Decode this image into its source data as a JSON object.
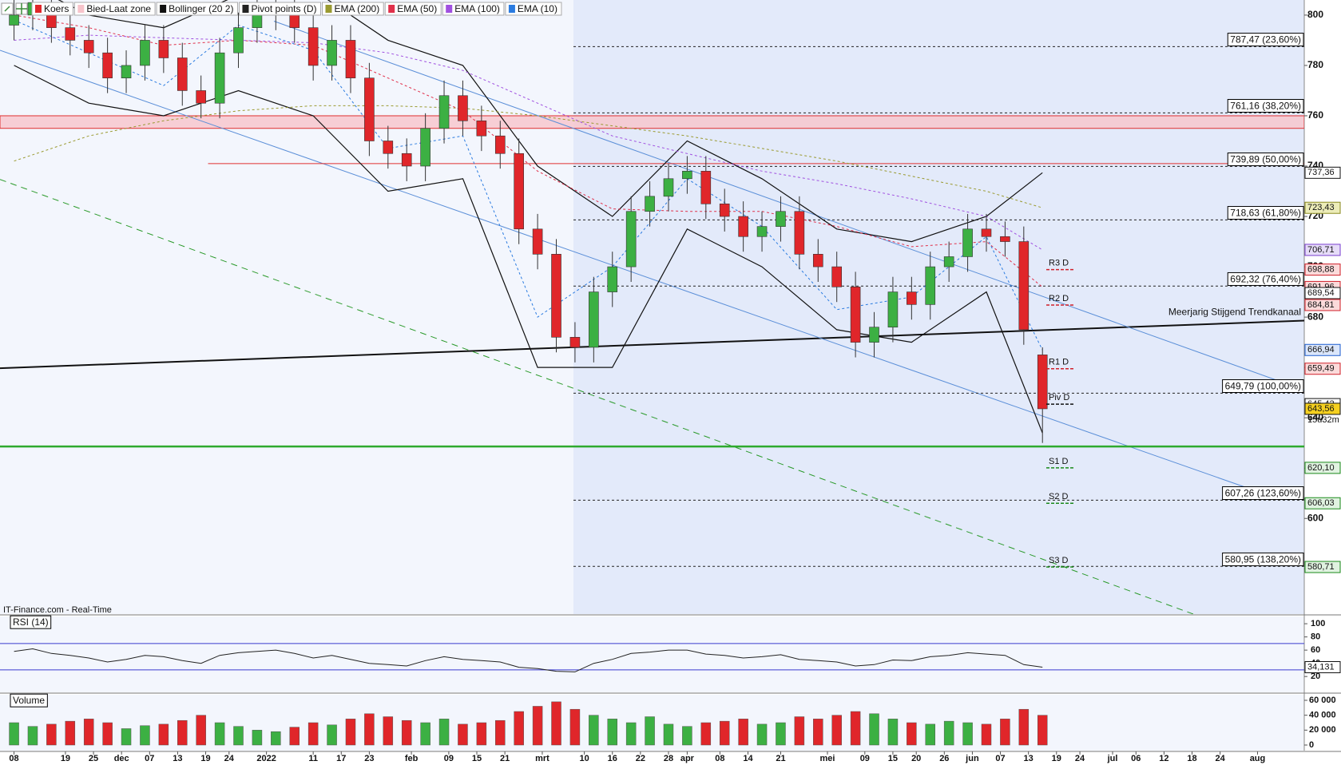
{
  "watermark": "IT-Finance.com - Real-Time",
  "chart_data": [
    {
      "type": "candlestick",
      "name": "Koers",
      "up_color": "#3cb043",
      "down_color": "#e0262a",
      "xlim": [
        -3,
        276
      ],
      "ylim": [
        562,
        806
      ],
      "yticks": [
        580,
        600,
        620,
        640,
        660,
        680,
        700,
        720,
        740,
        760,
        780,
        800
      ],
      "x": [
        0,
        4,
        8,
        12,
        16,
        20,
        24,
        28,
        32,
        36,
        40,
        44,
        48,
        52,
        56,
        60,
        64,
        68,
        72,
        76,
        80,
        84,
        88,
        92,
        96,
        100,
        104,
        108,
        112,
        116,
        120,
        124,
        128,
        132,
        136,
        140,
        144,
        148,
        152,
        156,
        160,
        164,
        168,
        172,
        176,
        180,
        184,
        188,
        192,
        196,
        200,
        204,
        208,
        212,
        216,
        220
      ],
      "open": [
        796,
        800,
        805,
        795,
        790,
        785,
        775,
        780,
        790,
        783,
        770,
        765,
        785,
        795,
        800,
        802,
        795,
        780,
        790,
        775,
        750,
        745,
        740,
        755,
        768,
        758,
        752,
        745,
        715,
        705,
        672,
        668,
        690,
        700,
        722,
        728,
        735,
        738,
        725,
        720,
        712,
        716,
        722,
        705,
        700,
        692,
        670,
        676,
        690,
        685,
        700,
        704,
        715,
        712,
        710,
        665
      ],
      "high": [
        806,
        811,
        811,
        801,
        796,
        791,
        786,
        796,
        796,
        789,
        776,
        791,
        801,
        806,
        808,
        808,
        801,
        796,
        796,
        781,
        756,
        751,
        761,
        774,
        774,
        764,
        758,
        751,
        721,
        711,
        678,
        696,
        706,
        728,
        734,
        741,
        744,
        744,
        731,
        726,
        722,
        728,
        728,
        711,
        706,
        698,
        682,
        696,
        696,
        706,
        710,
        721,
        721,
        718,
        716,
        668
      ],
      "low": [
        790,
        794,
        789,
        784,
        779,
        769,
        769,
        774,
        777,
        764,
        759,
        759,
        779,
        789,
        794,
        789,
        774,
        774,
        769,
        744,
        739,
        734,
        734,
        749,
        752,
        746,
        739,
        709,
        699,
        666,
        662,
        662,
        684,
        694,
        716,
        722,
        729,
        719,
        714,
        706,
        706,
        710,
        699,
        694,
        686,
        664,
        664,
        670,
        679,
        679,
        694,
        698,
        706,
        704,
        669,
        630
      ],
      "close": [
        800,
        805,
        795,
        790,
        785,
        775,
        780,
        790,
        783,
        770,
        765,
        785,
        795,
        800,
        802,
        795,
        780,
        790,
        775,
        750,
        745,
        740,
        755,
        768,
        758,
        752,
        745,
        715,
        705,
        672,
        668,
        690,
        700,
        722,
        728,
        735,
        738,
        725,
        720,
        712,
        716,
        722,
        705,
        700,
        692,
        670,
        676,
        690,
        685,
        700,
        704,
        715,
        712,
        710,
        675,
        643.56
      ],
      "zone": {
        "name": "Bied-Laat zone",
        "values": [
          755,
          760
        ],
        "color": "#f7c4cb"
      },
      "pivot_name": "Pivot points (D)",
      "overlay_x": [
        0,
        16,
        32,
        48,
        64,
        80,
        96,
        112,
        128,
        144,
        160,
        176,
        192,
        208,
        220
      ],
      "overlays": [
        {
          "name": "Bollinger (20 2)",
          "color": "#111111",
          "upper": [
            815,
            800,
            795,
            808,
            810,
            790,
            780,
            740,
            720,
            750,
            735,
            715,
            710,
            720,
            737.36
          ],
          "lower": [
            780,
            765,
            760,
            770,
            760,
            730,
            735,
            660,
            660,
            715,
            700,
            675,
            670,
            690,
            634
          ]
        },
        {
          "name": "EMA (200)",
          "color": "#9a9a30",
          "values": [
            742,
            752,
            758,
            762,
            764,
            764,
            763,
            760,
            756,
            752,
            747,
            742,
            736,
            730,
            723.43
          ]
        },
        {
          "name": "EMA (50)",
          "color": "#e0304a",
          "values": [
            800,
            795,
            788,
            790,
            788,
            775,
            762,
            738,
            723,
            722,
            722,
            716,
            708,
            710,
            691.96
          ]
        },
        {
          "name": "EMA (100)",
          "color": "#a050e0",
          "values": [
            790,
            792,
            791,
            790,
            789,
            785,
            778,
            765,
            752,
            745,
            738,
            733,
            727,
            720,
            706.71
          ]
        },
        {
          "name": "EMA (10)",
          "color": "#2a7be0",
          "values": [
            798,
            785,
            772,
            796,
            786,
            747,
            752,
            680,
            700,
            735,
            716,
            683,
            688,
            712,
            666.94
          ]
        }
      ],
      "levels": [
        {
          "value": 787.47,
          "label": "787,47 (23,60%)"
        },
        {
          "value": 761.16,
          "label": "761,16 (38,20%)"
        },
        {
          "value": 739.89,
          "label": "739,89 (50,00%)"
        },
        {
          "value": 718.63,
          "label": "718,63 (61,80%)"
        },
        {
          "value": 692.32,
          "label": "692,32 (76,40%)"
        },
        {
          "value": 649.79,
          "label": "649,79 (100,00%)"
        },
        {
          "value": 607.26,
          "label": "607,26 (123,60%)"
        },
        {
          "value": 580.95,
          "label": "580,95 (138,20%)"
        }
      ],
      "pivots": [
        {
          "name": "R3 D",
          "value": 698.88,
          "color": "#d0202a"
        },
        {
          "name": "R2 D",
          "value": 684.81,
          "color": "#d0202a"
        },
        {
          "name": "R1 D",
          "value": 659.49,
          "color": "#d0202a"
        },
        {
          "name": "Piv D",
          "value": 645.42,
          "color": "#111111"
        },
        {
          "name": "S1 D",
          "value": 620.1,
          "color": "#1a8a1a"
        },
        {
          "name": "S2 D",
          "value": 606.03,
          "color": "#1a8a1a"
        },
        {
          "name": "S3 D",
          "value": 580.71,
          "color": "#1a8a1a"
        }
      ],
      "lines": [
        {
          "x": [
            -3,
            276
          ],
          "values": [
            659.7,
            678.6
          ],
          "color": "#111111",
          "width": 2
        },
        {
          "x": [
            -3,
            264
          ],
          "values": [
            786,
            612
          ],
          "color": "#5b8fd8",
          "width": 1
        },
        {
          "x": [
            55.6,
            276
          ],
          "values": [
            797.6,
            651
          ],
          "color": "#5b8fd8",
          "width": 1
        },
        {
          "x": [
            -3,
            266
          ],
          "values": [
            734.7,
            552.7
          ],
          "color": "#2a9a2a",
          "width": 1,
          "dash": "8 6"
        },
        {
          "x": [
            -3,
            276
          ],
          "values": [
            628.6,
            628.6
          ],
          "color": "#2eaa2e",
          "width": 2.5
        },
        {
          "x": [
            41.5,
            276
          ],
          "values": [
            741,
            741
          ],
          "color": "#e03030",
          "width": 1
        }
      ],
      "trend_label": "Meerjarig Stijgend Trendkanaal",
      "price_tags": [
        {
          "value": 737.36,
          "label": "737,36",
          "color": "#111111",
          "fill": "#ffffff"
        },
        {
          "value": 723.43,
          "label": "723,43",
          "color": "#8a8a20",
          "fill": "#ececb8"
        },
        {
          "value": 706.71,
          "label": "706,71",
          "color": "#7a3fd0",
          "fill": "#e6dcf8"
        },
        {
          "value": 698.88,
          "label": "698,88",
          "color": "#d0202a",
          "fill": "#fbdada"
        },
        {
          "value": 691.96,
          "label": "691,96",
          "color": "#d0202a",
          "fill": "#fbdada"
        },
        {
          "value": 689.54,
          "label": "689,54",
          "color": "#111111",
          "fill": "#ffffff"
        },
        {
          "value": 684.81,
          "label": "684,81",
          "color": "#d0202a",
          "fill": "#fbdada"
        },
        {
          "value": 666.94,
          "label": "666,94",
          "color": "#1f5fd0",
          "fill": "#dbe6fa"
        },
        {
          "value": 659.49,
          "label": "659,49",
          "color": "#d0202a",
          "fill": "#fbdada"
        },
        {
          "value": 645.42,
          "label": "645,42",
          "color": "#111111",
          "fill": "#ffffff"
        },
        {
          "value": 643.56,
          "label": "643,56",
          "color": "#111111",
          "fill": "#f5d020"
        },
        {
          "value": 620.1,
          "label": "620,10",
          "color": "#1a8a1a",
          "fill": "#e0f2e0"
        },
        {
          "value": 606.03,
          "label": "606,03",
          "color": "#1a8a1a",
          "fill": "#e0f2e0"
        },
        {
          "value": 580.71,
          "label": "580,71",
          "color": "#1a8a1a",
          "fill": "#e0f2e0"
        }
      ],
      "time_label": "15u32m"
    },
    {
      "type": "line",
      "title": "RSI (14)",
      "color": "#222222",
      "xlim": [
        -3,
        276
      ],
      "ylim": [
        -4,
        111
      ],
      "yticks": [
        20,
        40,
        60,
        80,
        100
      ],
      "levels": [
        70,
        30
      ],
      "level_color": "#3a3ad0",
      "x": [
        0,
        4,
        8,
        12,
        16,
        20,
        24,
        28,
        32,
        36,
        40,
        44,
        48,
        52,
        56,
        60,
        64,
        68,
        72,
        76,
        80,
        84,
        88,
        92,
        96,
        100,
        104,
        108,
        112,
        116,
        120,
        124,
        128,
        132,
        136,
        140,
        144,
        148,
        152,
        156,
        160,
        164,
        168,
        172,
        176,
        180,
        184,
        188,
        192,
        196,
        200,
        204,
        208,
        212,
        216,
        220
      ],
      "values": [
        58,
        62,
        55,
        52,
        48,
        42,
        46,
        52,
        50,
        44,
        40,
        52,
        56,
        58,
        60,
        55,
        48,
        52,
        46,
        40,
        38,
        36,
        44,
        50,
        46,
        44,
        42,
        34,
        32,
        28,
        27,
        40,
        46,
        55,
        57,
        60,
        60,
        54,
        52,
        48,
        50,
        53,
        46,
        44,
        42,
        36,
        38,
        45,
        44,
        50,
        52,
        56,
        54,
        52,
        38,
        34.131
      ],
      "tag": {
        "value": 34.131,
        "label": "34,131"
      }
    },
    {
      "type": "bar",
      "title": "Volume",
      "xlim": [
        -3,
        276
      ],
      "ylim": [
        -7500,
        67500
      ],
      "yticks": [
        0,
        {
          "value": 20000,
          "label": "20 000"
        },
        {
          "value": 40000,
          "label": "40 000"
        },
        {
          "value": 60000,
          "label": "60 000"
        }
      ],
      "x": [
        0,
        4,
        8,
        12,
        16,
        20,
        24,
        28,
        32,
        36,
        40,
        44,
        48,
        52,
        56,
        60,
        64,
        68,
        72,
        76,
        80,
        84,
        88,
        92,
        96,
        100,
        104,
        108,
        112,
        116,
        120,
        124,
        128,
        132,
        136,
        140,
        144,
        148,
        152,
        156,
        160,
        164,
        168,
        172,
        176,
        180,
        184,
        188,
        192,
        196,
        200,
        204,
        208,
        212,
        216,
        220
      ],
      "values": [
        30000,
        25000,
        28000,
        32000,
        35000,
        30000,
        22000,
        26000,
        28000,
        33000,
        40000,
        30000,
        25000,
        20000,
        18000,
        24000,
        30000,
        27000,
        35000,
        42000,
        38000,
        33000,
        30000,
        35000,
        28000,
        30000,
        33000,
        45000,
        52000,
        58000,
        48000,
        40000,
        35000,
        30000,
        38000,
        28000,
        25000,
        30000,
        32000,
        35000,
        28000,
        30000,
        38000,
        35000,
        40000,
        45000,
        42000,
        35000,
        30000,
        28000,
        32000,
        30000,
        28000,
        35000,
        48000,
        40000
      ],
      "xticks": [
        {
          "value": 0,
          "label": "08"
        },
        {
          "value": 11,
          "label": "19"
        },
        {
          "value": 17,
          "label": "25"
        },
        {
          "value": 23,
          "label": "dec"
        },
        {
          "value": 29,
          "label": "07"
        },
        {
          "value": 35,
          "label": "13"
        },
        {
          "value": 41,
          "label": "19"
        },
        {
          "value": 46,
          "label": "24"
        },
        {
          "value": 54,
          "label": "2022"
        },
        {
          "value": 64,
          "label": "11"
        },
        {
          "value": 70,
          "label": "17"
        },
        {
          "value": 76,
          "label": "23"
        },
        {
          "value": 85,
          "label": "feb"
        },
        {
          "value": 93,
          "label": "09"
        },
        {
          "value": 99,
          "label": "15"
        },
        {
          "value": 105,
          "label": "21"
        },
        {
          "value": 113,
          "label": "mrt"
        },
        {
          "value": 122,
          "label": "10"
        },
        {
          "value": 128,
          "label": "16"
        },
        {
          "value": 134,
          "label": "22"
        },
        {
          "value": 140,
          "label": "28"
        },
        {
          "value": 144,
          "label": "apr"
        },
        {
          "value": 151,
          "label": "08"
        },
        {
          "value": 157,
          "label": "14"
        },
        {
          "value": 164,
          "label": "21"
        },
        {
          "value": 174,
          "label": "mei"
        },
        {
          "value": 182,
          "label": "09"
        },
        {
          "value": 188,
          "label": "15"
        },
        {
          "value": 193,
          "label": "20"
        },
        {
          "value": 199,
          "label": "26"
        },
        {
          "value": 205,
          "label": "jun"
        },
        {
          "value": 211,
          "label": "07"
        },
        {
          "value": 217,
          "label": "13"
        },
        {
          "value": 223,
          "label": "19"
        },
        {
          "value": 228,
          "label": "24"
        },
        {
          "value": 235,
          "label": "jul"
        },
        {
          "value": 240,
          "label": "06"
        },
        {
          "value": 246,
          "label": "12"
        },
        {
          "value": 252,
          "label": "18"
        },
        {
          "value": 258,
          "label": "24"
        },
        {
          "value": 266,
          "label": "aug"
        }
      ]
    }
  ]
}
